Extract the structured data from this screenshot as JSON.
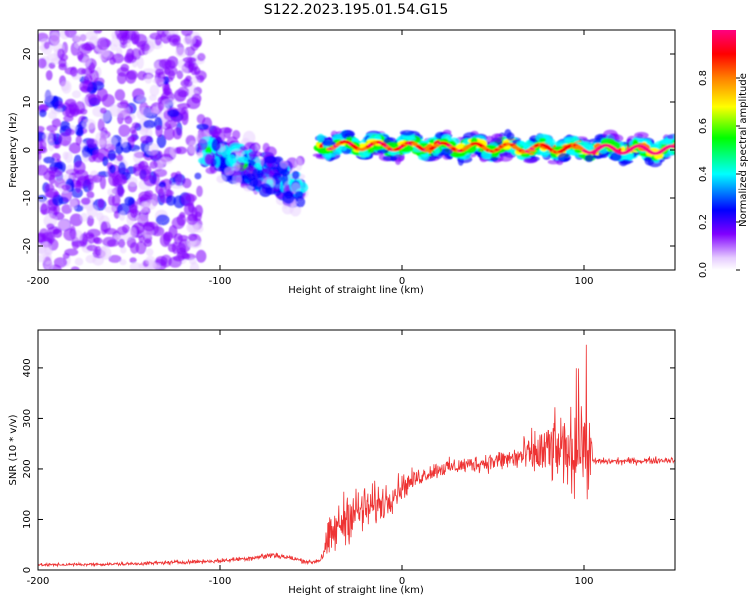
{
  "title": "S122.2023.195.01.54.G15",
  "chart_data": [
    {
      "type": "heatmap",
      "xlabel": "Height of straight line (km)",
      "ylabel": "Frequency (Hz)",
      "xlim": [
        -200,
        150
      ],
      "ylim": [
        -25,
        25
      ],
      "x_ticks": [
        -200,
        -100,
        0,
        100
      ],
      "x_tick_labels": [
        "-200",
        "-100",
        "0",
        "100"
      ],
      "y_ticks": [
        -20,
        -10,
        0,
        10,
        20
      ],
      "y_tick_labels": [
        "-20",
        "-10",
        "0",
        "10",
        "20"
      ],
      "colorbar": {
        "label": "Normalized spectral amplitude",
        "range": [
          0,
          1
        ],
        "ticks": [
          0.0,
          0.2,
          0.4,
          0.6,
          0.8
        ],
        "tick_labels": [
          "0.0",
          "0.2",
          "0.4",
          "0.6",
          "0.8"
        ],
        "colormap": [
          "#ffffff",
          "#e6ccff",
          "#8000ff",
          "#0000ff",
          "#00ffff",
          "#00ff00",
          "#ffff00",
          "#ff8000",
          "#ff0000",
          "#ff0080"
        ]
      },
      "segments": [
        {
          "x_range": [
            -200,
            -110
          ],
          "center_frequency": 0,
          "spread": 25,
          "peak_amplitude": 0.25
        },
        {
          "x_range": [
            -110,
            -55
          ],
          "center_frequency": [
            1,
            -8
          ],
          "spread": 5,
          "peak_amplitude": 0.45
        },
        {
          "x_range": [
            -45,
            150
          ],
          "center_frequency": [
            1,
            0
          ],
          "spread": 2,
          "peak_amplitude": 0.95
        }
      ]
    },
    {
      "type": "line",
      "xlabel": "Height of straight line (km)",
      "ylabel": "SNR (10 * v/v)",
      "xlim": [
        -200,
        150
      ],
      "ylim": [
        0,
        475
      ],
      "x_ticks": [
        -200,
        -100,
        0,
        100
      ],
      "x_tick_labels": [
        "-200",
        "-100",
        "0",
        "100"
      ],
      "y_ticks": [
        0,
        100,
        200,
        300,
        400
      ],
      "y_tick_labels": [
        "0",
        "100",
        "200",
        "300",
        "400"
      ],
      "color": "#ee3333",
      "trend_x": [
        -200,
        -150,
        -100,
        -80,
        -70,
        -50,
        -45,
        -40,
        -30,
        -20,
        -10,
        0,
        10,
        20,
        40,
        60,
        80,
        90,
        100,
        104,
        105,
        120,
        150
      ],
      "trend_y": [
        10,
        12,
        18,
        25,
        30,
        15,
        20,
        60,
        110,
        120,
        135,
        165,
        185,
        200,
        210,
        220,
        235,
        240,
        240,
        230,
        215,
        215,
        218
      ],
      "noise_y": [
        4,
        5,
        6,
        8,
        10,
        6,
        10,
        60,
        80,
        70,
        55,
        40,
        25,
        25,
        25,
        35,
        90,
        110,
        120,
        110,
        10,
        10,
        10
      ]
    }
  ]
}
